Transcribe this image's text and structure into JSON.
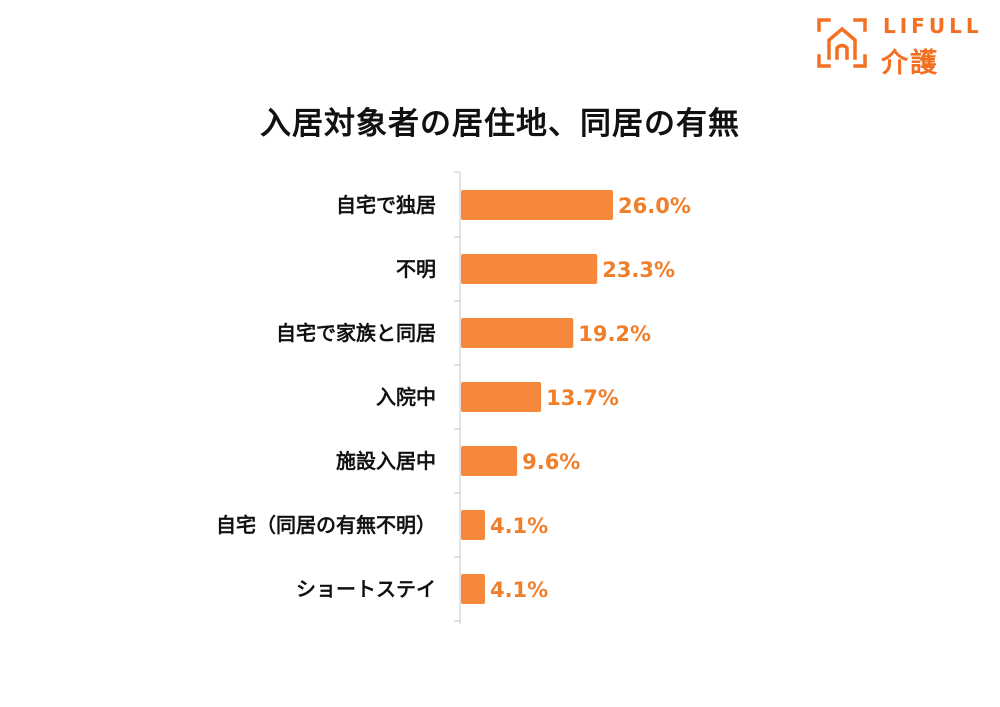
{
  "brand": {
    "name_en": "LIFULL",
    "name_ja": "介護",
    "color": "#f36f21",
    "icon": "house-frame-logo"
  },
  "chart_data": {
    "type": "bar",
    "orientation": "horizontal",
    "title": "入居対象者の居住地、同居の有無",
    "categories": [
      "自宅で独居",
      "不明",
      "自宅で家族と同居",
      "入院中",
      "施設入居中",
      "自宅（同居の有無不明）",
      "ショートステイ"
    ],
    "values": [
      26.0,
      23.3,
      19.2,
      13.7,
      9.6,
      4.1,
      4.1
    ],
    "value_labels": [
      "26.0%",
      "23.3%",
      "19.2%",
      "13.7%",
      "9.6%",
      "4.1%",
      "4.1%"
    ],
    "xlim": [
      0,
      30
    ],
    "grid": false,
    "legend": "none",
    "bar_color": "#f5883a",
    "label_color": "#f07f2c",
    "axis_color": "#d9d9d9"
  }
}
